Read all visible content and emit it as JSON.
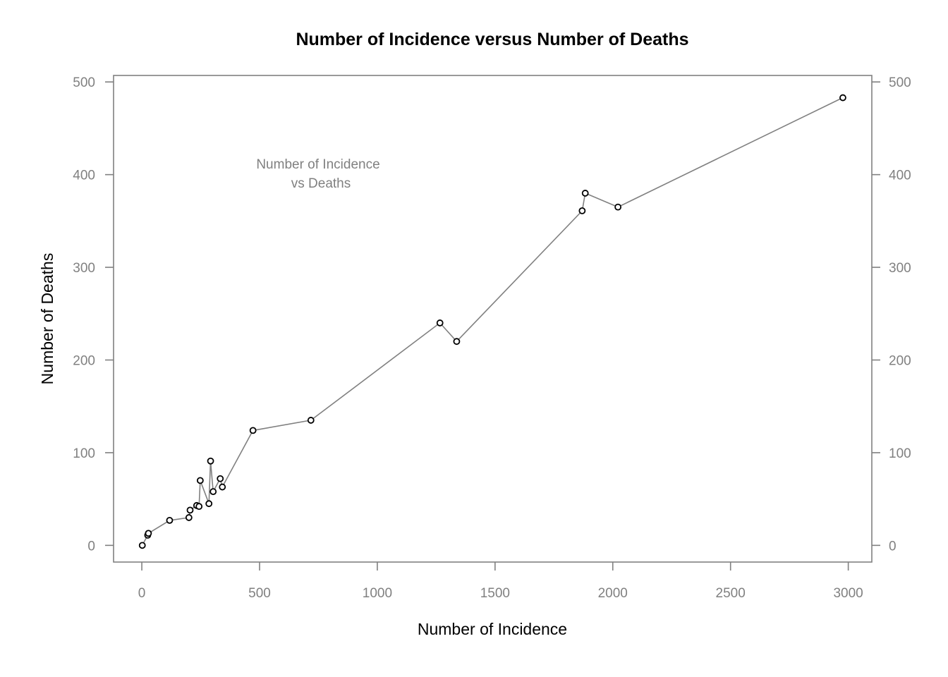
{
  "chart_data": {
    "type": "line",
    "title": "Number of Incidence versus Number of Deaths",
    "xlabel": "Number of Incidence",
    "ylabel": "Number of Deaths",
    "annotation": [
      "Number of Incidence",
      "vs Deaths"
    ],
    "xlim": [
      -120,
      3100
    ],
    "ylim": [
      -18,
      507
    ],
    "x_ticks": [
      0,
      500,
      1000,
      1500,
      2000,
      2500,
      3000
    ],
    "y_ticks": [
      0,
      100,
      200,
      300,
      400,
      500
    ],
    "right_axis": true,
    "grid": false,
    "points": [
      {
        "x": 2,
        "y": 0
      },
      {
        "x": 25,
        "y": 11
      },
      {
        "x": 28,
        "y": 13
      },
      {
        "x": 118,
        "y": 27
      },
      {
        "x": 200,
        "y": 30
      },
      {
        "x": 205,
        "y": 38
      },
      {
        "x": 233,
        "y": 43
      },
      {
        "x": 243,
        "y": 42
      },
      {
        "x": 248,
        "y": 70
      },
      {
        "x": 285,
        "y": 45
      },
      {
        "x": 292,
        "y": 91
      },
      {
        "x": 303,
        "y": 58
      },
      {
        "x": 333,
        "y": 72
      },
      {
        "x": 342,
        "y": 63
      },
      {
        "x": 472,
        "y": 124
      },
      {
        "x": 718,
        "y": 135
      },
      {
        "x": 1266,
        "y": 240
      },
      {
        "x": 1337,
        "y": 220
      },
      {
        "x": 1870,
        "y": 361
      },
      {
        "x": 1883,
        "y": 380
      },
      {
        "x": 2022,
        "y": 365
      },
      {
        "x": 2977,
        "y": 483
      }
    ]
  }
}
